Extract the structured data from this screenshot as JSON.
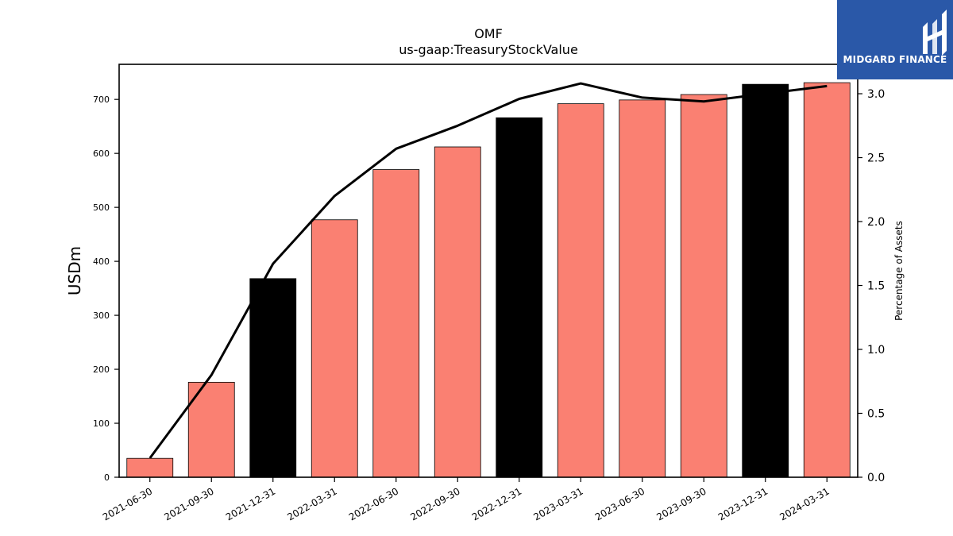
{
  "logo": {
    "text": "MIDGARD FINANCE",
    "background": "#2a58a8"
  },
  "chart_data": {
    "type": "bar",
    "title": "OMF",
    "subtitle": "us-gaap:TreasuryStockValue",
    "ylabel": "USDm",
    "y2label": "Percentage of Assets",
    "categories": [
      "2021-06-30",
      "2021-09-30",
      "2021-12-31",
      "2022-03-31",
      "2022-06-30",
      "2022-09-30",
      "2022-12-31",
      "2023-03-31",
      "2023-06-30",
      "2023-09-30",
      "2023-12-31",
      "2024-03-31"
    ],
    "series": [
      {
        "type": "bar",
        "axis": "left",
        "values": [
          35,
          176,
          368,
          477,
          570,
          612,
          666,
          692,
          699,
          709,
          728,
          731
        ],
        "colors": [
          "#fa8072",
          "#fa8072",
          "#000000",
          "#fa8072",
          "#fa8072",
          "#fa8072",
          "#000000",
          "#fa8072",
          "#fa8072",
          "#fa8072",
          "#000000",
          "#fa8072"
        ]
      },
      {
        "type": "line",
        "axis": "right",
        "values": [
          0.15,
          0.8,
          1.67,
          2.2,
          2.57,
          2.75,
          2.96,
          3.08,
          2.97,
          2.94,
          3.0,
          3.06
        ],
        "color": "#000000"
      }
    ],
    "ylim": [
      0,
      765
    ],
    "y2lim": [
      0,
      3.23
    ],
    "yticks": [
      0,
      100,
      200,
      300,
      400,
      500,
      600,
      700
    ],
    "y2ticks": [
      "0.0",
      "0.5",
      "1.0",
      "1.5",
      "2.0",
      "2.5",
      "3.0"
    ],
    "grid": false,
    "legend": "none"
  }
}
